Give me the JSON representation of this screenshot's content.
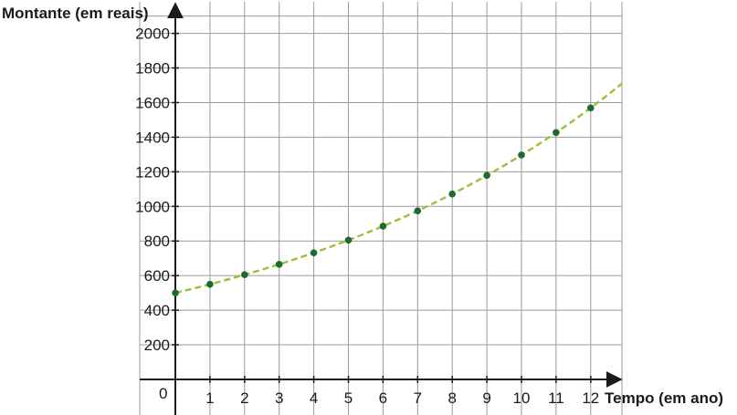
{
  "chart_data": {
    "type": "scatter",
    "title": "",
    "xlabel": "Tempo (em ano)",
    "ylabel": "Montante (em reais)",
    "origin_label": "0",
    "xlim": [
      0,
      13
    ],
    "ylim": [
      0,
      2100
    ],
    "x_ticks": [
      1,
      2,
      3,
      4,
      5,
      6,
      7,
      8,
      9,
      10,
      11,
      12
    ],
    "y_ticks": [
      200,
      400,
      600,
      800,
      1000,
      1200,
      1400,
      1600,
      1800,
      2000
    ],
    "grid": true,
    "series": [
      {
        "x": [
          0,
          1,
          2,
          3,
          4,
          5,
          6,
          7,
          8,
          9,
          10,
          11,
          12
        ],
        "y": [
          500,
          550,
          605,
          665,
          732,
          805,
          886,
          974,
          1072,
          1179,
          1297,
          1427,
          1569
        ],
        "marker_color": "#1e6b2e",
        "curve_color": "#9dbf3a",
        "curve": "exponential",
        "growth_rate": 1.1
      }
    ]
  }
}
